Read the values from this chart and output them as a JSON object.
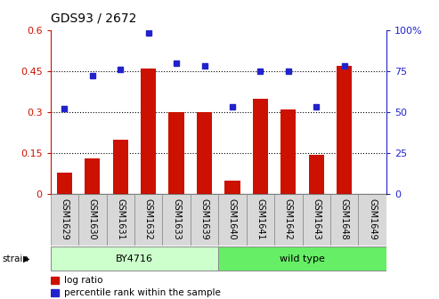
{
  "title": "GDS93 / 2672",
  "categories": [
    "GSM1629",
    "GSM1630",
    "GSM1631",
    "GSM1632",
    "GSM1633",
    "GSM1639",
    "GSM1640",
    "GSM1641",
    "GSM1642",
    "GSM1643",
    "GSM1648",
    "GSM1649"
  ],
  "log_ratio": [
    0.08,
    0.13,
    0.2,
    0.46,
    0.3,
    0.3,
    0.05,
    0.35,
    0.31,
    0.145,
    0.47,
    0.0
  ],
  "percentile_rank": [
    52,
    72,
    76,
    98,
    80,
    78,
    53,
    75,
    75,
    53,
    78,
    null
  ],
  "bar_color": "#cc1100",
  "dot_color": "#2222cc",
  "ylim_left": [
    0,
    0.6
  ],
  "ylim_right": [
    0,
    100
  ],
  "yticks_left": [
    0,
    0.15,
    0.3,
    0.45,
    0.6
  ],
  "yticks_right": [
    0,
    25,
    50,
    75,
    100
  ],
  "ytick_labels_left": [
    "0",
    "0.15",
    "0.3",
    "0.45",
    "0.6"
  ],
  "ytick_labels_right": [
    "0",
    "25",
    "50",
    "75",
    "100%"
  ],
  "grid_at": [
    0.15,
    0.3,
    0.45
  ],
  "group1_label": "BY4716",
  "group2_label": "wild type",
  "group1_indices": [
    0,
    1,
    2,
    3,
    4,
    5
  ],
  "group2_indices": [
    6,
    7,
    8,
    9,
    10,
    11
  ],
  "group1_color": "#ccffcc",
  "group2_color": "#66ee66",
  "strain_label": "strain",
  "legend_bar_label": "log ratio",
  "legend_dot_label": "percentile rank within the sample",
  "title_fontsize": 10,
  "tick_label_fontsize": 8,
  "left_tick_color": "#cc1100",
  "right_tick_color": "#2222cc"
}
